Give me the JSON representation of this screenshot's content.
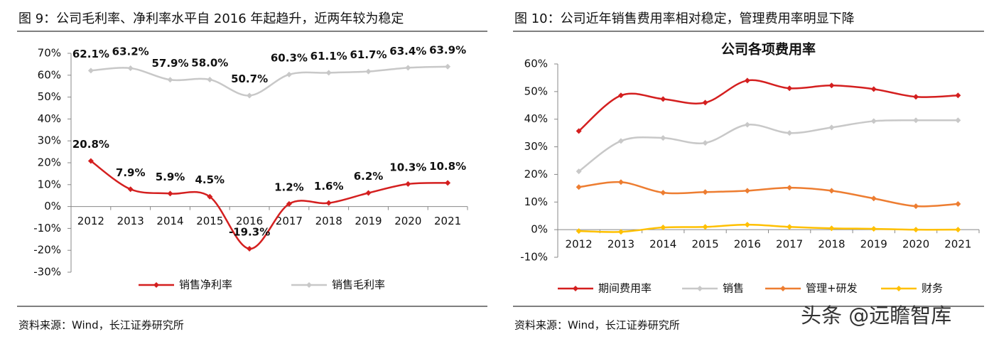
{
  "chart_data": [
    {
      "type": "line",
      "caption": "图 9：公司毛利率、净利率水平自 2016 年起趋升，近两年较为稳定",
      "categories": [
        "2012",
        "2013",
        "2014",
        "2015",
        "2016",
        "2017",
        "2018",
        "2019",
        "2020",
        "2021"
      ],
      "series": [
        {
          "name": "销售净利率",
          "color": "#d41f1f",
          "values": [
            20.8,
            7.9,
            5.9,
            4.5,
            -19.3,
            1.2,
            1.6,
            6.2,
            10.3,
            10.8
          ],
          "value_labels": [
            "20.8%",
            "7.9%",
            "5.9%",
            "4.5%",
            "-19.3%",
            "1.2%",
            "1.6%",
            "6.2%",
            "10.3%",
            "10.8%"
          ]
        },
        {
          "name": "销售毛利率",
          "color": "#c8c8c8",
          "values": [
            62.1,
            63.2,
            57.9,
            58.0,
            50.7,
            60.3,
            61.1,
            61.7,
            63.4,
            63.9
          ],
          "value_labels": [
            "62.1%",
            "63.2%",
            "57.9%",
            "58.0%",
            "50.7%",
            "60.3%",
            "61.1%",
            "61.7%",
            "63.4%",
            "63.9%"
          ]
        }
      ],
      "ylim": [
        -30,
        70
      ],
      "yticks": [
        {
          "value": -30,
          "label": "-30%"
        },
        {
          "value": -20,
          "label": "-20%"
        },
        {
          "value": -10,
          "label": "-10%"
        },
        {
          "value": 0,
          "label": "0%"
        },
        {
          "value": 10,
          "label": "10%"
        },
        {
          "value": 20,
          "label": "20%"
        },
        {
          "value": 30,
          "label": "30%"
        },
        {
          "value": 40,
          "label": "40%"
        },
        {
          "value": 50,
          "label": "50%"
        },
        {
          "value": 60,
          "label": "60%"
        },
        {
          "value": 70,
          "label": "70%"
        }
      ],
      "grid": false,
      "legend": "bottom",
      "source": "资料来源：Wind，长江证券研究所"
    },
    {
      "type": "line",
      "caption": "图 10：公司近年销售费用率相对稳定，管理费用率明显下降",
      "title": "公司各项费用率",
      "categories": [
        "2012",
        "2013",
        "2014",
        "2015",
        "2016",
        "2017",
        "2018",
        "2019",
        "2020",
        "2021"
      ],
      "series": [
        {
          "name": "期间费用率",
          "color": "#d41f1f",
          "values": [
            35.7,
            48.6,
            47.3,
            46.0,
            54.0,
            51.2,
            52.2,
            50.9,
            48.1,
            48.6
          ]
        },
        {
          "name": "销售",
          "color": "#c8c8c8",
          "values": [
            21.1,
            32.1,
            33.2,
            31.4,
            38.0,
            35.0,
            37.0,
            39.3,
            39.6,
            39.6
          ]
        },
        {
          "name": "管理+研发",
          "color": "#ed7d31",
          "values": [
            15.4,
            17.2,
            13.4,
            13.6,
            14.1,
            15.2,
            14.1,
            11.3,
            8.5,
            9.3
          ]
        },
        {
          "name": "财务",
          "color": "#ffc000",
          "values": [
            -0.5,
            -0.8,
            0.8,
            1.0,
            1.8,
            1.0,
            0.5,
            0.3,
            0.0,
            0.0
          ]
        }
      ],
      "ylim": [
        -10,
        60
      ],
      "yticks": [
        {
          "value": -10,
          "label": "-10%"
        },
        {
          "value": 0,
          "label": "0%"
        },
        {
          "value": 10,
          "label": "10%"
        },
        {
          "value": 20,
          "label": "20%"
        },
        {
          "value": 30,
          "label": "30%"
        },
        {
          "value": 40,
          "label": "40%"
        },
        {
          "value": 50,
          "label": "50%"
        },
        {
          "value": 60,
          "label": "60%"
        }
      ],
      "grid": false,
      "legend": "bottom",
      "source": "资料来源：Wind，长江证券研究所"
    }
  ],
  "watermark": "头条 @远瞻智库"
}
